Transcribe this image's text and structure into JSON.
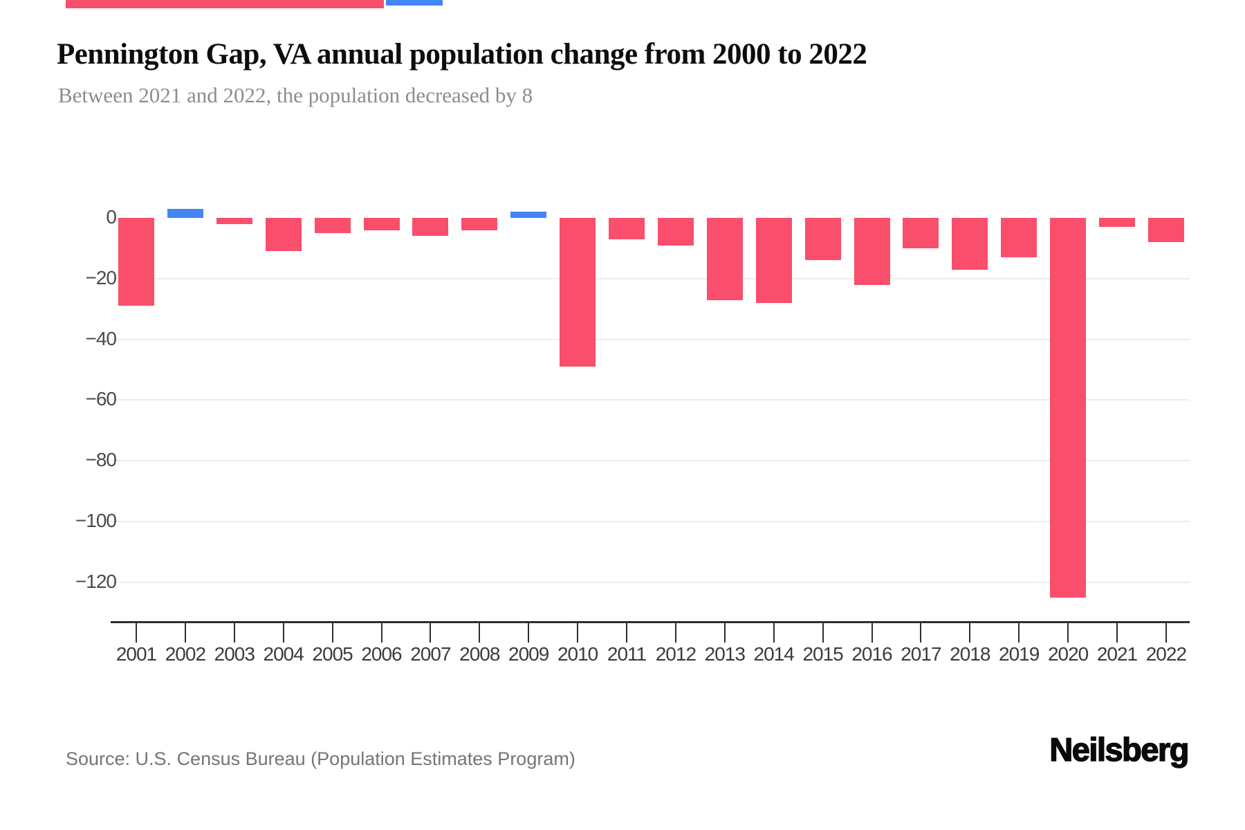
{
  "page": {
    "title": "Pennington Gap, VA annual population change from 2000 to 2022",
    "subtitle": "Between 2021 and 2022, the population decreased by 8",
    "source": "Source: U.S. Census Bureau (Population Estimates Program)",
    "brand": "Neilsberg"
  },
  "colors": {
    "decrease_bar": "#F94E6C",
    "increase_bar": "#4285F4",
    "gridline": "#EDEDED",
    "axis": "#2E2E2E",
    "x_tick_label": "#3B3B3B",
    "y_tick_label": "#4A4A4A",
    "title_text": "#0D0D0D",
    "subtitle_text": "#8C8C8C",
    "source_text": "#757575"
  },
  "chart_data": {
    "type": "bar",
    "title": "Pennington Gap, VA annual population change from 2000 to 2022",
    "subtitle": "Between 2021 and 2022, the population decreased by 8",
    "xlabel": "",
    "ylabel": "",
    "categories": [
      "2001",
      "2002",
      "2003",
      "2004",
      "2005",
      "2006",
      "2007",
      "2008",
      "2009",
      "2010",
      "2011",
      "2012",
      "2013",
      "2014",
      "2015",
      "2016",
      "2017",
      "2018",
      "2019",
      "2020",
      "2021",
      "2022"
    ],
    "values": [
      -29,
      3,
      -2,
      -11,
      -5,
      -4,
      -6,
      -4,
      2,
      -49,
      -7,
      -9,
      -27,
      -28,
      -14,
      -22,
      -10,
      -17,
      -13,
      -125,
      -3,
      -8
    ],
    "yticks": [
      0,
      -20,
      -40,
      -60,
      -80,
      -100,
      -120
    ],
    "ylim": [
      -130,
      5
    ],
    "grid": "horizontal gridlines at y ticks, none at 0",
    "legend": "none",
    "color_rule": "negative values #F94E6C (red), positive values #4285F4 (blue)"
  }
}
